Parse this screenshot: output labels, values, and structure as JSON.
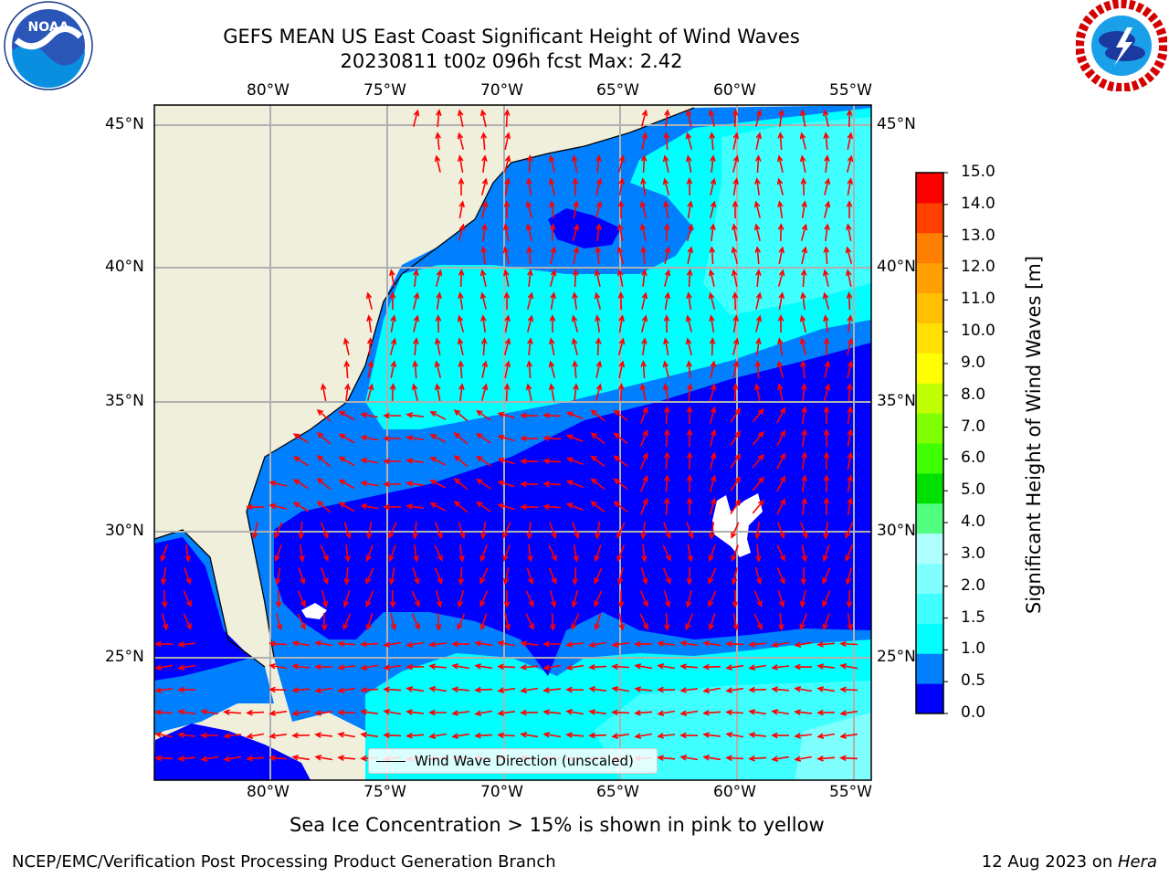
{
  "header": {
    "title_line1": "GEFS MEAN US East Coast Significant Height of Wind Waves",
    "title_line2": "20230811 t00z 096h fcst   Max: 2.42"
  },
  "logos": {
    "left": "noaa-logo",
    "left_text": "NOAA",
    "right": "national-weather-service-logo",
    "right_text": "NATIONAL WEATHER SERVICE"
  },
  "map": {
    "lon_labels": [
      "80°W",
      "75°W",
      "70°W",
      "65°W",
      "60°W",
      "55°W"
    ],
    "lat_labels": [
      "45°N",
      "40°N",
      "35°N",
      "30°N",
      "25°N"
    ],
    "legend_label": "Wind Wave Direction (unscaled)",
    "colors": {
      "land": "#efefdc",
      "sea_0": "#0000ff",
      "sea_05": "#0080ff",
      "sea_1": "#00ffff",
      "sea_15": "#40ffff",
      "sea_2": "#80ffff",
      "arrow": "#ff0000",
      "grid": "#b0b0b0"
    }
  },
  "colorbar": {
    "label": "Significant Height of Wind Waves [m]",
    "ticks": [
      "15.0",
      "14.0",
      "13.0",
      "12.0",
      "11.0",
      "10.0",
      "9.0",
      "8.0",
      "7.0",
      "6.0",
      "5.0",
      "4.0",
      "3.0",
      "2.0",
      "1.5",
      "1.0",
      "0.5",
      "0.0"
    ],
    "colors": [
      "#0000ff",
      "#0080ff",
      "#00ffff",
      "#40ffff",
      "#80ffff",
      "#b0ffff",
      "#50ff80",
      "#00e000",
      "#40ff00",
      "#80ff00",
      "#c0ff00",
      "#ffff00",
      "#ffe000",
      "#ffc000",
      "#ffa000",
      "#ff8000",
      "#ff4000",
      "#ff0000"
    ]
  },
  "footer": {
    "note": "Sea Ice Concentration > 15% is shown in pink to yellow",
    "left": "NCEP/EMC/Verification Post Processing Product Generation Branch",
    "right_prefix": "12 Aug 2023 on ",
    "right_host": "Hera"
  }
}
